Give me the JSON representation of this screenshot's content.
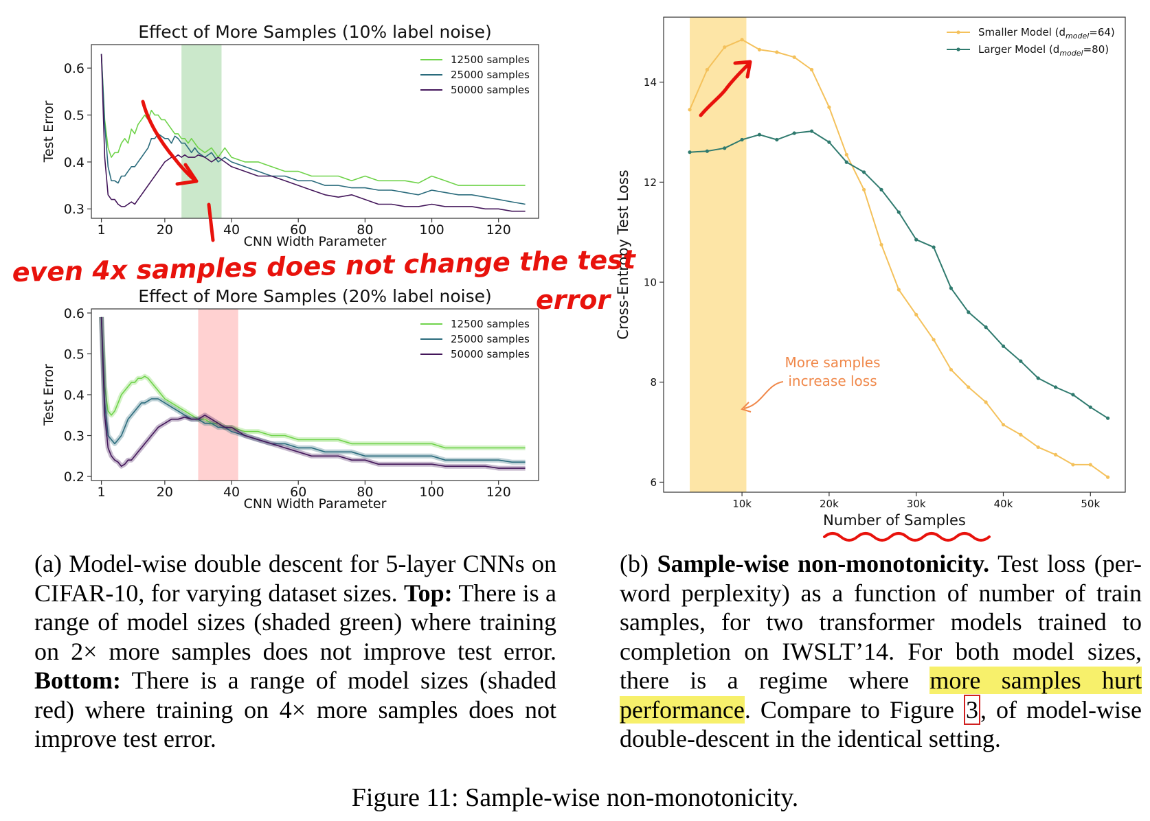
{
  "chart_data": [
    {
      "type": "line",
      "title": "Effect of More Samples (10% label noise)",
      "xlabel": "CNN Width Parameter",
      "ylabel": "Test Error",
      "xlim": [
        -2,
        132
      ],
      "ylim": [
        0.28,
        0.65
      ],
      "xticks": [
        1,
        20,
        40,
        60,
        80,
        100,
        120
      ],
      "yticks": [
        0.3,
        0.4,
        0.5,
        0.6
      ],
      "shaded_region": {
        "x": [
          25,
          37
        ],
        "color": "#a9d9a9"
      },
      "legend": "top-right",
      "series": [
        {
          "name": "12500 samples",
          "color": "#6fd34a",
          "x": [
            1,
            2,
            3,
            4,
            5,
            6,
            7,
            8,
            9,
            10,
            11,
            12,
            13,
            14,
            15,
            16,
            17,
            18,
            19,
            20,
            21,
            22,
            23,
            24,
            25,
            26,
            27,
            28,
            29,
            30,
            32,
            34,
            36,
            38,
            40,
            44,
            48,
            52,
            56,
            60,
            64,
            68,
            72,
            76,
            80,
            84,
            88,
            92,
            96,
            100,
            104,
            108,
            112,
            116,
            120,
            124,
            128
          ],
          "y": [
            0.63,
            0.49,
            0.43,
            0.41,
            0.42,
            0.42,
            0.44,
            0.45,
            0.44,
            0.47,
            0.46,
            0.48,
            0.49,
            0.5,
            0.49,
            0.51,
            0.5,
            0.5,
            0.49,
            0.49,
            0.48,
            0.47,
            0.46,
            0.46,
            0.45,
            0.45,
            0.44,
            0.45,
            0.44,
            0.43,
            0.42,
            0.43,
            0.41,
            0.43,
            0.41,
            0.4,
            0.4,
            0.39,
            0.38,
            0.38,
            0.37,
            0.37,
            0.37,
            0.36,
            0.37,
            0.36,
            0.36,
            0.36,
            0.355,
            0.37,
            0.36,
            0.35,
            0.35,
            0.35,
            0.35,
            0.35,
            0.35
          ]
        },
        {
          "name": "25000 samples",
          "color": "#2a6b7c",
          "x": [
            1,
            2,
            3,
            4,
            5,
            6,
            7,
            8,
            9,
            10,
            11,
            12,
            13,
            14,
            15,
            16,
            17,
            18,
            19,
            20,
            21,
            22,
            23,
            24,
            25,
            26,
            27,
            28,
            29,
            30,
            32,
            34,
            36,
            38,
            40,
            44,
            48,
            52,
            56,
            60,
            64,
            68,
            72,
            76,
            80,
            84,
            88,
            92,
            96,
            100,
            104,
            108,
            112,
            116,
            120,
            124,
            128
          ],
          "y": [
            0.63,
            0.48,
            0.39,
            0.36,
            0.36,
            0.355,
            0.37,
            0.37,
            0.38,
            0.39,
            0.39,
            0.4,
            0.41,
            0.42,
            0.43,
            0.45,
            0.45,
            0.46,
            0.455,
            0.45,
            0.45,
            0.44,
            0.455,
            0.45,
            0.44,
            0.44,
            0.43,
            0.42,
            0.43,
            0.42,
            0.41,
            0.42,
            0.4,
            0.41,
            0.4,
            0.39,
            0.38,
            0.37,
            0.37,
            0.36,
            0.36,
            0.35,
            0.35,
            0.345,
            0.345,
            0.34,
            0.34,
            0.335,
            0.33,
            0.34,
            0.335,
            0.33,
            0.33,
            0.325,
            0.32,
            0.315,
            0.31
          ]
        },
        {
          "name": "50000 samples",
          "color": "#43165a",
          "x": [
            1,
            2,
            3,
            4,
            5,
            6,
            7,
            8,
            9,
            10,
            11,
            12,
            13,
            14,
            15,
            16,
            17,
            18,
            19,
            20,
            21,
            22,
            23,
            24,
            25,
            26,
            27,
            28,
            29,
            30,
            32,
            34,
            36,
            38,
            40,
            44,
            48,
            52,
            56,
            60,
            64,
            68,
            72,
            76,
            80,
            84,
            88,
            92,
            96,
            100,
            104,
            108,
            112,
            116,
            120,
            124,
            128
          ],
          "y": [
            0.63,
            0.41,
            0.33,
            0.32,
            0.32,
            0.31,
            0.305,
            0.305,
            0.31,
            0.315,
            0.31,
            0.32,
            0.33,
            0.34,
            0.35,
            0.36,
            0.37,
            0.38,
            0.39,
            0.4,
            0.405,
            0.41,
            0.41,
            0.415,
            0.41,
            0.415,
            0.41,
            0.41,
            0.41,
            0.415,
            0.41,
            0.4,
            0.41,
            0.4,
            0.39,
            0.38,
            0.37,
            0.37,
            0.36,
            0.35,
            0.34,
            0.33,
            0.325,
            0.33,
            0.32,
            0.31,
            0.31,
            0.305,
            0.305,
            0.31,
            0.305,
            0.305,
            0.305,
            0.3,
            0.3,
            0.295,
            0.295
          ]
        }
      ]
    },
    {
      "type": "line",
      "title": "Effect of More Samples (20% label noise)",
      "xlabel": "CNN Width Parameter",
      "ylabel": "Test Error",
      "xlim": [
        -2,
        132
      ],
      "ylim": [
        0.19,
        0.61
      ],
      "xticks": [
        1,
        20,
        40,
        60,
        80,
        100,
        120
      ],
      "yticks": [
        0.2,
        0.3,
        0.4,
        0.5,
        0.6
      ],
      "shaded_region": {
        "x": [
          30,
          42
        ],
        "color": "#ffb3b3"
      },
      "legend": "top-right",
      "series": [
        {
          "name": "12500 samples",
          "color": "#6fd34a",
          "x": [
            1,
            2,
            3,
            4,
            5,
            6,
            7,
            8,
            9,
            10,
            11,
            12,
            13,
            14,
            15,
            16,
            17,
            18,
            19,
            20,
            22,
            24,
            26,
            28,
            30,
            32,
            34,
            36,
            38,
            40,
            44,
            48,
            52,
            56,
            60,
            64,
            68,
            72,
            76,
            80,
            84,
            88,
            92,
            96,
            100,
            104,
            108,
            112,
            116,
            120,
            124,
            128
          ],
          "y": [
            0.59,
            0.42,
            0.36,
            0.35,
            0.36,
            0.38,
            0.4,
            0.41,
            0.42,
            0.43,
            0.43,
            0.44,
            0.44,
            0.445,
            0.44,
            0.43,
            0.42,
            0.41,
            0.4,
            0.39,
            0.38,
            0.37,
            0.36,
            0.35,
            0.34,
            0.34,
            0.33,
            0.33,
            0.32,
            0.32,
            0.31,
            0.31,
            0.3,
            0.3,
            0.29,
            0.29,
            0.29,
            0.29,
            0.28,
            0.28,
            0.28,
            0.28,
            0.28,
            0.28,
            0.28,
            0.27,
            0.27,
            0.27,
            0.27,
            0.27,
            0.27,
            0.27
          ]
        },
        {
          "name": "25000 samples",
          "color": "#2a6b7c",
          "x": [
            1,
            2,
            3,
            4,
            5,
            6,
            7,
            8,
            9,
            10,
            11,
            12,
            13,
            14,
            15,
            16,
            17,
            18,
            19,
            20,
            22,
            24,
            26,
            28,
            30,
            32,
            34,
            36,
            38,
            40,
            44,
            48,
            52,
            56,
            60,
            64,
            68,
            72,
            76,
            80,
            84,
            88,
            92,
            96,
            100,
            104,
            108,
            112,
            116,
            120,
            124,
            128
          ],
          "y": [
            0.59,
            0.38,
            0.3,
            0.29,
            0.28,
            0.29,
            0.3,
            0.32,
            0.34,
            0.35,
            0.36,
            0.37,
            0.38,
            0.38,
            0.385,
            0.39,
            0.39,
            0.39,
            0.385,
            0.38,
            0.37,
            0.36,
            0.35,
            0.34,
            0.34,
            0.33,
            0.33,
            0.32,
            0.32,
            0.31,
            0.3,
            0.29,
            0.28,
            0.28,
            0.27,
            0.27,
            0.26,
            0.26,
            0.26,
            0.25,
            0.25,
            0.25,
            0.25,
            0.25,
            0.25,
            0.24,
            0.24,
            0.24,
            0.24,
            0.24,
            0.235,
            0.235
          ]
        },
        {
          "name": "50000 samples",
          "color": "#43165a",
          "x": [
            1,
            2,
            3,
            4,
            5,
            6,
            7,
            8,
            9,
            10,
            11,
            12,
            13,
            14,
            15,
            16,
            17,
            18,
            19,
            20,
            22,
            24,
            26,
            28,
            30,
            32,
            34,
            36,
            38,
            40,
            44,
            48,
            52,
            56,
            60,
            64,
            68,
            72,
            76,
            80,
            84,
            88,
            92,
            96,
            100,
            104,
            108,
            112,
            116,
            120,
            124,
            128
          ],
          "y": [
            0.59,
            0.35,
            0.27,
            0.25,
            0.24,
            0.235,
            0.225,
            0.23,
            0.24,
            0.24,
            0.25,
            0.26,
            0.27,
            0.28,
            0.29,
            0.3,
            0.31,
            0.32,
            0.325,
            0.33,
            0.34,
            0.34,
            0.345,
            0.34,
            0.34,
            0.35,
            0.34,
            0.33,
            0.32,
            0.32,
            0.3,
            0.29,
            0.28,
            0.27,
            0.26,
            0.25,
            0.25,
            0.25,
            0.24,
            0.24,
            0.23,
            0.23,
            0.23,
            0.23,
            0.23,
            0.225,
            0.225,
            0.225,
            0.225,
            0.22,
            0.22,
            0.22
          ]
        }
      ]
    },
    {
      "type": "line",
      "title": "",
      "xlabel": "Number of Samples",
      "ylabel": "Cross-Entropy Test Loss",
      "xlim": [
        1000,
        54000
      ],
      "ylim": [
        5.8,
        15.3
      ],
      "xticks": [
        10000,
        20000,
        30000,
        40000,
        50000
      ],
      "xtick_labels": [
        "10k",
        "20k",
        "30k",
        "40k",
        "50k"
      ],
      "yticks": [
        6,
        8,
        10,
        12,
        14
      ],
      "shaded_region": {
        "x": [
          4000,
          10500
        ],
        "color": "#fde5a6"
      },
      "legend": "top-right",
      "annotation": {
        "text_lines": [
          "More samples",
          "increase loss"
        ],
        "color": "#f0884a"
      },
      "series": [
        {
          "name_main": "Smaller Model (d",
          "name_sub": "model",
          "name_end": "=64)",
          "color": "#f4c15b",
          "x": [
            4000,
            6000,
            8000,
            10000,
            12000,
            14000,
            16000,
            18000,
            20000,
            22000,
            24000,
            26000,
            28000,
            30000,
            32000,
            34000,
            36000,
            38000,
            40000,
            42000,
            44000,
            46000,
            48000,
            50000,
            52000
          ],
          "y": [
            13.45,
            14.25,
            14.7,
            14.85,
            14.65,
            14.6,
            14.5,
            14.25,
            13.5,
            12.55,
            11.85,
            10.75,
            9.85,
            9.35,
            8.85,
            8.25,
            7.9,
            7.6,
            7.15,
            6.95,
            6.7,
            6.55,
            6.35,
            6.35,
            6.1
          ]
        },
        {
          "name_main": "Larger  Model (d",
          "name_sub": "model",
          "name_end": "=80)",
          "color": "#2f7a6e",
          "x": [
            4000,
            6000,
            8000,
            10000,
            12000,
            14000,
            16000,
            18000,
            20000,
            22000,
            24000,
            26000,
            28000,
            30000,
            32000,
            34000,
            36000,
            38000,
            40000,
            42000,
            44000,
            46000,
            48000,
            50000,
            52000
          ],
          "y": [
            12.6,
            12.62,
            12.68,
            12.85,
            12.95,
            12.85,
            12.98,
            13.02,
            12.8,
            12.4,
            12.2,
            11.85,
            11.4,
            10.85,
            10.7,
            9.88,
            9.4,
            9.1,
            8.72,
            8.42,
            8.08,
            7.9,
            7.75,
            7.5,
            7.28
          ]
        }
      ]
    }
  ],
  "handwriting": {
    "line1": "even 4x samples does not change the test",
    "line2": "error",
    "color": "#e8120c"
  },
  "captions": {
    "a_prefix": "(a) Model-wise double descent for 5-layer CNNs on CIFAR-10, for varying dataset sizes.",
    "a_top_label": "Top:",
    "a_top_text": "There is a range of model sizes (shaded green) where training on 2× more samples does not improve test error.",
    "a_bottom_label": "Bottom:",
    "a_bottom_text": "There is a range of model sizes (shaded red) where training on 4× more samples does not improve test error.",
    "b_prefix": "(b)",
    "b_bold": "Sample-wise non-monotonicity.",
    "b_text1": "Test loss (per-word perplexity) as a function of number of train samples, for two transformer models trained to completion on IWSLT’14. For both model sizes, there is a regime where",
    "b_highlight": "more samples hurt performance",
    "b_text2": ". Compare to Figure",
    "b_ref": "3",
    "b_text3": ", of model-wise double-descent in the identical setting.",
    "figure": "Figure 11: Sample-wise non-monotonicity."
  }
}
